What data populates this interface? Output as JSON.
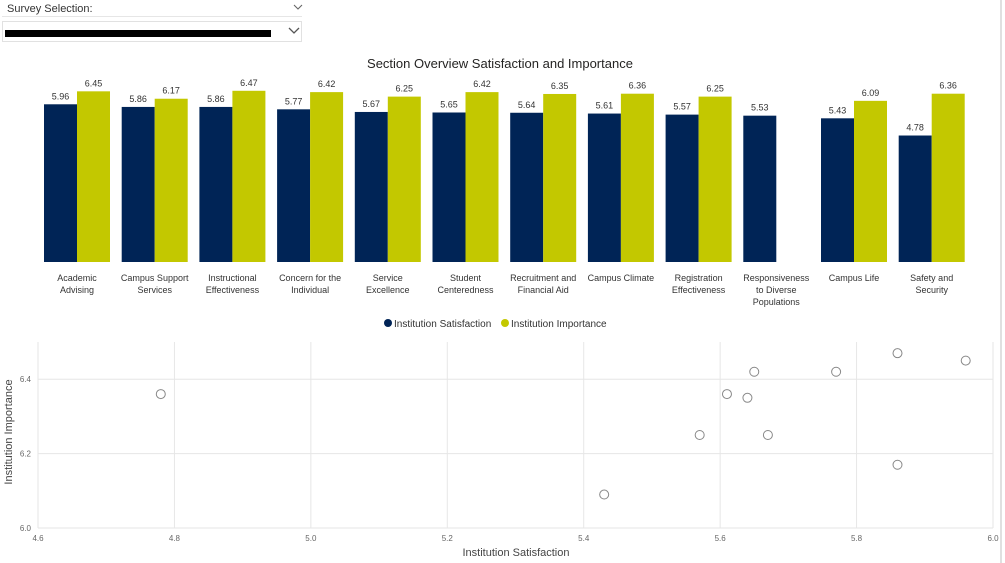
{
  "slicer": {
    "label": "Survey Selection:",
    "value": ""
  },
  "colors": {
    "satisfaction": "#002456",
    "importance": "#c3c800",
    "grid": "#e6e6e6",
    "marker": "#888888"
  },
  "chart_data": [
    {
      "type": "bar",
      "title": "Section Overview Satisfaction and Importance",
      "categories": [
        "Academic Advising",
        "Campus Support Services",
        "Instructional Effectiveness",
        "Concern for the Individual",
        "Service Excellence",
        "Student Centeredness",
        "Recruitment and Financial Aid",
        "Campus Climate",
        "Registration Effectiveness",
        "Responsiveness to Diverse Populations",
        "Campus Life",
        "Safety and Security"
      ],
      "category_lines": [
        [
          "Academic",
          "Advising"
        ],
        [
          "Campus Support",
          "Services"
        ],
        [
          "Instructional",
          "Effectiveness"
        ],
        [
          "Concern for the",
          "Individual"
        ],
        [
          "Service",
          "Excellence"
        ],
        [
          "Student",
          "Centeredness"
        ],
        [
          "Recruitment and",
          "Financial Aid"
        ],
        [
          "Campus Climate"
        ],
        [
          "Registration",
          "Effectiveness"
        ],
        [
          "Responsiveness",
          "to Diverse",
          "Populations"
        ],
        [
          "Campus Life"
        ],
        [
          "Safety and",
          "Security"
        ]
      ],
      "series": [
        {
          "name": "Institution Satisfaction",
          "values": [
            5.96,
            5.86,
            5.86,
            5.77,
            5.67,
            5.65,
            5.64,
            5.61,
            5.57,
            5.53,
            5.43,
            4.78
          ]
        },
        {
          "name": "Institution Importance",
          "values": [
            6.45,
            6.17,
            6.47,
            6.42,
            6.25,
            6.42,
            6.35,
            6.36,
            6.25,
            null,
            6.09,
            6.36
          ]
        }
      ],
      "value_labels": {
        "Institution Satisfaction": [
          "5.96",
          "5.86",
          "5.86",
          "5.77",
          "5.67",
          "5.65",
          "5.64",
          "5.61",
          "5.57",
          "5.53",
          "5.43",
          "4.78"
        ],
        "Institution Importance": [
          "6.45",
          "6.17",
          "6.47",
          "6.42",
          "6.25",
          "6.42",
          "6.35",
          "6.36",
          "6.25",
          "",
          "6.09",
          "6.36"
        ]
      },
      "legend": [
        "Institution Satisfaction",
        "Institution Importance"
      ],
      "legend_position": "bottom-center"
    },
    {
      "type": "scatter",
      "xlabel": "Institution Satisfaction",
      "ylabel": "Institution Importance",
      "xlim": [
        4.6,
        6.0
      ],
      "ylim": [
        6.0,
        6.5
      ],
      "x_ticks": [
        "4.6",
        "4.8",
        "5.0",
        "5.2",
        "5.4",
        "5.6",
        "5.8",
        "6.0"
      ],
      "y_ticks": [
        "6.0",
        "6.2",
        "6.4"
      ],
      "grid": true,
      "points": [
        {
          "x": 5.96,
          "y": 6.45
        },
        {
          "x": 5.86,
          "y": 6.17
        },
        {
          "x": 5.86,
          "y": 6.47
        },
        {
          "x": 5.77,
          "y": 6.42
        },
        {
          "x": 5.67,
          "y": 6.25
        },
        {
          "x": 5.65,
          "y": 6.42
        },
        {
          "x": 5.64,
          "y": 6.35
        },
        {
          "x": 5.61,
          "y": 6.36
        },
        {
          "x": 5.57,
          "y": 6.25
        },
        {
          "x": 5.43,
          "y": 6.09
        },
        {
          "x": 4.78,
          "y": 6.36
        }
      ]
    }
  ]
}
